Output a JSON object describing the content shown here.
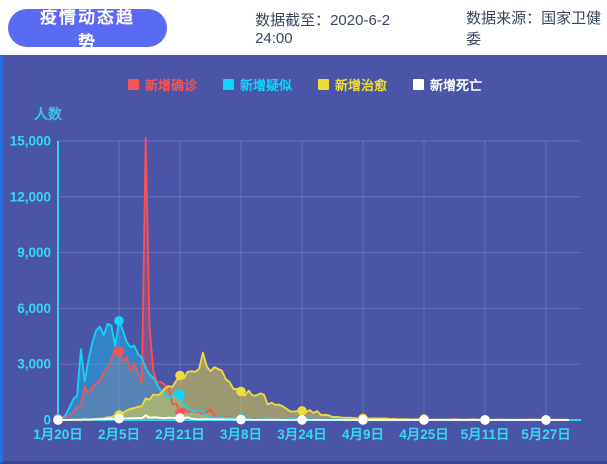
{
  "header": {
    "title": "疫情动态趋势",
    "data_cutoff": "数据截至：2020-6-2 24:00",
    "data_source": "数据来源：国家卫健委"
  },
  "colors": {
    "panel_bg": "#4a55a8",
    "pill_accent": "#5b6af2",
    "axis_cyan": "#2ed4f7",
    "tick_text": "#35d8f8",
    "grid": "rgba(255,255,255,0.16)",
    "confirmed_red": "#f75355",
    "suspected_cyan": "#12d3f9",
    "cured_yellow": "#eedc3c",
    "deaths_white": "#ffffff"
  },
  "chart_data": {
    "type": "area",
    "title": "疫情动态趋势",
    "ylabel": "人数",
    "ylim": [
      0,
      15000
    ],
    "y_tick_values": [
      0,
      3000,
      6000,
      9000,
      12000,
      15000
    ],
    "y_tick_labels": [
      "0",
      "3,000",
      "6,000",
      "9,000",
      "12,000",
      "15,000"
    ],
    "x_tick_labels": [
      "1月20日",
      "2月5日",
      "2月21日",
      "3月8日",
      "3月24日",
      "4月9日",
      "4月25日",
      "5月11日",
      "5月27日"
    ],
    "x_tick_interval_days": 16,
    "x_start": "1月20日",
    "x_end": "6月2日",
    "grid": true,
    "legend_position": "top",
    "marker_every_days": 16,
    "series": [
      {
        "name": "新增确诊",
        "color": "#f75355",
        "fill_opacity": 0.32,
        "values": [
          77,
          149,
          131,
          259,
          444,
          688,
          769,
          1771,
          1459,
          1737,
          1982,
          2102,
          2590,
          2829,
          3235,
          3887,
          3694,
          3143,
          3399,
          2656,
          3062,
          2478,
          2015,
          15152,
          5090,
          2641,
          2009,
          2048,
          1886,
          1749,
          820,
          889,
          397,
          648,
          409,
          508,
          406,
          433,
          327,
          427,
          573,
          202,
          125,
          119,
          139,
          143,
          99,
          44,
          40,
          19,
          24,
          15,
          8,
          11,
          20,
          16,
          21,
          13,
          34,
          39,
          41,
          46,
          39,
          78,
          47,
          67,
          55,
          54,
          45,
          31,
          48,
          36,
          35,
          31,
          19,
          30,
          39,
          32,
          62,
          63,
          42,
          46,
          99,
          108,
          89,
          46,
          46,
          26,
          27,
          16,
          12,
          30,
          10,
          10,
          6,
          12,
          11,
          3,
          6,
          22,
          4,
          12,
          1,
          2,
          3,
          1,
          2,
          2,
          1,
          1,
          14,
          17,
          1,
          7,
          3,
          4,
          8,
          5,
          7,
          6,
          5,
          2,
          4,
          2,
          3,
          11,
          7,
          1,
          1,
          0,
          4,
          2,
          16,
          5,
          1
        ]
      },
      {
        "name": "新增疑似",
        "color": "#12d3f9",
        "fill_opacity": 0.38,
        "values": [
          54,
          53,
          257,
          680,
          1118,
          1309,
          3806,
          2077,
          3248,
          4148,
          4812,
          5019,
          4562,
          5173,
          5072,
          3971,
          5328,
          4833,
          4214,
          3916,
          4008,
          3536,
          3342,
          2807,
          2450,
          2277,
          1918,
          1563,
          1432,
          1185,
          1277,
          1614,
          1361,
          882,
          620,
          530,
          439,
          508,
          452,
          248,
          141,
          129,
          129,
          143,
          102,
          102,
          99,
          84,
          59,
          41,
          31,
          33,
          26,
          17,
          36,
          45,
          34,
          21,
          23,
          31,
          39,
          47,
          44,
          35,
          26,
          44,
          58,
          34,
          28,
          24,
          38,
          22,
          46,
          40,
          28,
          24,
          28,
          30,
          28,
          20,
          27,
          34,
          34,
          24,
          21,
          34,
          29,
          21,
          17,
          10,
          9,
          13,
          16,
          10,
          12,
          17,
          3,
          2,
          3,
          4,
          2,
          2,
          2,
          2,
          7,
          3,
          3,
          1,
          2,
          1,
          4,
          5,
          2,
          6,
          1,
          3,
          3,
          4,
          2,
          2,
          1,
          2,
          4,
          3,
          5,
          2,
          3,
          0,
          1,
          1,
          0,
          1,
          2,
          4,
          1
        ]
      },
      {
        "name": "新增治愈",
        "color": "#eedc3c",
        "fill_opacity": 0.5,
        "values": [
          0,
          0,
          3,
          6,
          3,
          11,
          9,
          43,
          9,
          21,
          47,
          72,
          85,
          147,
          157,
          262,
          261,
          387,
          510,
          600,
          632,
          716,
          744,
          1171,
          1081,
          1373,
          1323,
          1425,
          1701,
          1824,
          1779,
          2109,
          2393,
          2230,
          2589,
          2620,
          2589,
          2750,
          3622,
          2885,
          2623,
          2837,
          2742,
          2652,
          2189,
          2046,
          1678,
          1661,
          1535,
          1297,
          1578,
          1318,
          1323,
          1430,
          1373,
          838,
          930,
          819,
          835,
          730,
          590,
          459,
          456,
          491,
          491,
          401,
          537,
          383,
          477,
          266,
          282,
          251,
          157,
          173,
          138,
          127,
          120,
          118,
          89,
          94,
          86,
          84,
          77,
          80,
          74,
          86,
          81,
          54,
          58,
          36,
          46,
          38,
          37,
          29,
          40,
          46,
          46,
          20,
          15,
          18,
          21,
          18,
          22,
          28,
          30,
          26,
          19,
          20,
          26,
          32,
          21,
          16,
          12,
          20,
          13,
          22,
          18,
          14,
          16,
          13,
          11,
          14,
          14,
          10,
          28,
          22,
          21,
          18,
          13,
          11,
          10,
          14,
          11,
          9,
          3
        ]
      },
      {
        "name": "新增死亡",
        "color": "#ffffff",
        "fill_opacity": 0.22,
        "values": [
          2,
          3,
          8,
          8,
          16,
          15,
          24,
          26,
          26,
          38,
          43,
          46,
          45,
          57,
          64,
          65,
          73,
          73,
          86,
          89,
          97,
          108,
          97,
          254,
          121,
          143,
          142,
          105,
          98,
          136,
          114,
          118,
          109,
          97,
          150,
          71,
          52,
          29,
          44,
          47,
          35,
          42,
          31,
          38,
          31,
          30,
          28,
          27,
          22,
          17,
          22,
          11,
          7,
          13,
          10,
          14,
          13,
          11,
          8,
          3,
          7,
          6,
          9,
          7,
          4,
          6,
          5,
          3,
          5,
          4,
          1,
          7,
          6,
          4,
          4,
          3,
          1,
          0,
          2,
          2,
          1,
          3,
          0,
          0,
          1,
          0,
          0,
          0,
          0,
          0,
          0,
          0,
          0,
          0,
          0,
          0,
          0,
          0,
          0,
          0,
          0,
          0,
          0,
          0,
          0,
          0,
          0,
          0,
          0,
          0,
          0,
          0,
          0,
          0,
          0,
          0,
          0,
          0,
          0,
          0,
          0,
          0,
          0,
          0,
          0,
          0,
          0,
          0,
          0,
          0,
          0,
          0,
          0,
          0,
          0
        ]
      }
    ]
  }
}
